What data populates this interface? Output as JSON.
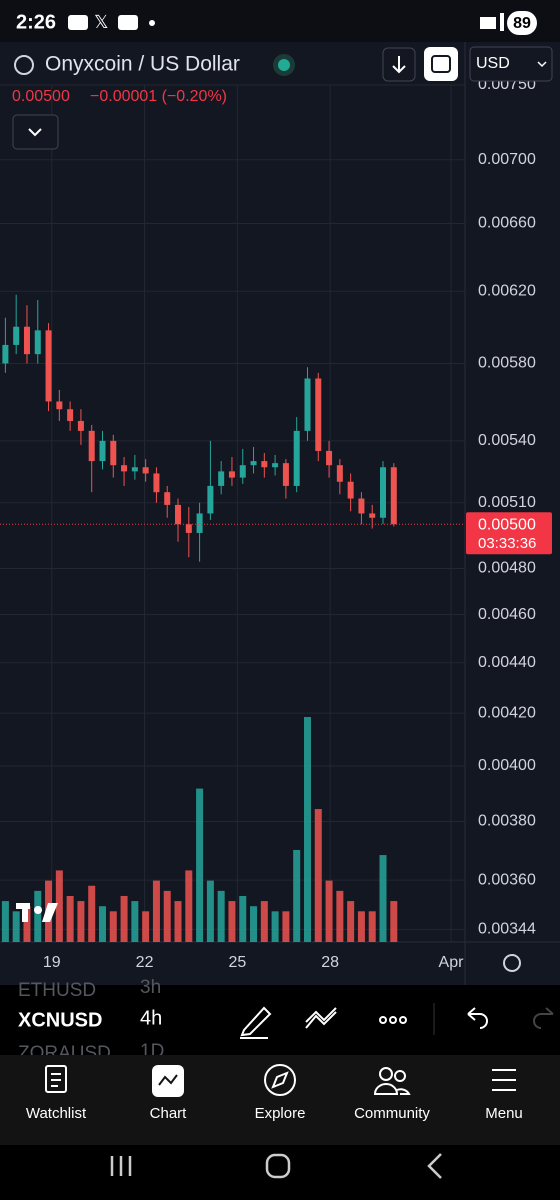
{
  "status_bar": {
    "time": "2:26",
    "battery": "89"
  },
  "header": {
    "symbol": "Onyxcoin / US Dollar",
    "price": "0.00500",
    "change": "−0.00001 (−0.20%)",
    "currency": "USD"
  },
  "chart_data": {
    "type": "candlestick",
    "log_scale": true,
    "grid": true,
    "up_color": "#26a69a",
    "down_color": "#ef5350",
    "open": [
      0.0058,
      0.0059,
      0.006,
      0.00585,
      0.00598,
      0.0056,
      0.00556,
      0.0055,
      0.00545,
      0.0053,
      0.0054,
      0.00528,
      0.00525,
      0.00527,
      0.00524,
      0.00515,
      0.00509,
      0.005,
      0.00496,
      0.00505,
      0.00518,
      0.00525,
      0.00522,
      0.00528,
      0.0053,
      0.00527,
      0.00529,
      0.00518,
      0.00545,
      0.00572,
      0.00535,
      0.00528,
      0.0052,
      0.00512,
      0.00505,
      0.00503,
      0.00527
    ],
    "high": [
      0.00605,
      0.00618,
      0.00612,
      0.00615,
      0.00602,
      0.00566,
      0.0056,
      0.00556,
      0.00548,
      0.00545,
      0.00543,
      0.00532,
      0.00533,
      0.00531,
      0.00527,
      0.00518,
      0.00512,
      0.00508,
      0.0051,
      0.0054,
      0.0053,
      0.00532,
      0.00536,
      0.00537,
      0.00534,
      0.00533,
      0.00531,
      0.00552,
      0.00578,
      0.00575,
      0.0054,
      0.00531,
      0.00524,
      0.00515,
      0.00509,
      0.0053,
      0.00529
    ],
    "low": [
      0.00575,
      0.00585,
      0.0058,
      0.0058,
      0.00555,
      0.0055,
      0.00545,
      0.00538,
      0.00515,
      0.00526,
      0.00522,
      0.00518,
      0.00521,
      0.0052,
      0.0051,
      0.00503,
      0.00492,
      0.00485,
      0.00483,
      0.00502,
      0.00514,
      0.00518,
      0.00519,
      0.00524,
      0.00522,
      0.00523,
      0.00512,
      0.00515,
      0.0054,
      0.0053,
      0.00522,
      0.00514,
      0.00506,
      0.005,
      0.00498,
      0.005,
      0.00499
    ],
    "close": [
      0.0059,
      0.006,
      0.00585,
      0.00598,
      0.0056,
      0.00556,
      0.0055,
      0.00545,
      0.0053,
      0.0054,
      0.00528,
      0.00525,
      0.00527,
      0.00524,
      0.00515,
      0.00509,
      0.005,
      0.00496,
      0.00505,
      0.00518,
      0.00525,
      0.00522,
      0.00528,
      0.0053,
      0.00527,
      0.00529,
      0.00518,
      0.00545,
      0.00572,
      0.00535,
      0.00528,
      0.0052,
      0.00512,
      0.00505,
      0.00503,
      0.00527,
      0.005
    ],
    "volume": [
      40,
      30,
      35,
      50,
      60,
      70,
      45,
      40,
      55,
      35,
      30,
      45,
      40,
      30,
      60,
      50,
      40,
      70,
      150,
      60,
      50,
      40,
      45,
      35,
      40,
      30,
      30,
      90,
      220,
      130,
      60,
      50,
      40,
      30,
      30,
      85,
      40
    ],
    "xlim": [
      -0.5,
      42.6
    ],
    "xticks": [
      {
        "value": 4.3,
        "label": "19"
      },
      {
        "value": 12.9,
        "label": "22"
      },
      {
        "value": 21.5,
        "label": "25"
      },
      {
        "value": 30.1,
        "label": "28"
      },
      {
        "value": 41.3,
        "label": "Apr"
      }
    ],
    "ylim": [
      0.0034,
      0.0075
    ],
    "yticks": [
      {
        "value": 0.0075,
        "label": "0.00750"
      },
      {
        "value": 0.007,
        "label": "0.00700"
      },
      {
        "value": 0.0066,
        "label": "0.00660"
      },
      {
        "value": 0.0062,
        "label": "0.00620"
      },
      {
        "value": 0.0058,
        "label": "0.00580"
      },
      {
        "value": 0.0054,
        "label": "0.00540"
      },
      {
        "value": 0.0051,
        "label": "0.00510"
      },
      {
        "value": 0.0048,
        "label": "0.00480"
      },
      {
        "value": 0.0046,
        "label": "0.00460"
      },
      {
        "value": 0.0044,
        "label": "0.00440"
      },
      {
        "value": 0.0042,
        "label": "0.00420"
      },
      {
        "value": 0.004,
        "label": "0.00400"
      },
      {
        "value": 0.0038,
        "label": "0.00380"
      },
      {
        "value": 0.0036,
        "label": "0.00360"
      },
      {
        "value": 0.00344,
        "label": "0.00344"
      }
    ],
    "last_price": {
      "value": 0.005,
      "label": "0.00500"
    },
    "countdown": "03:33:36"
  },
  "symbol_list": [
    {
      "symbol": "ETHUSD",
      "interval": "3h"
    },
    {
      "symbol": "XCNUSD",
      "interval": "4h"
    },
    {
      "symbol": "ZORAUSD",
      "interval": "1D"
    }
  ],
  "nav": [
    "Watchlist",
    "Chart",
    "Explore",
    "Community",
    "Menu"
  ]
}
